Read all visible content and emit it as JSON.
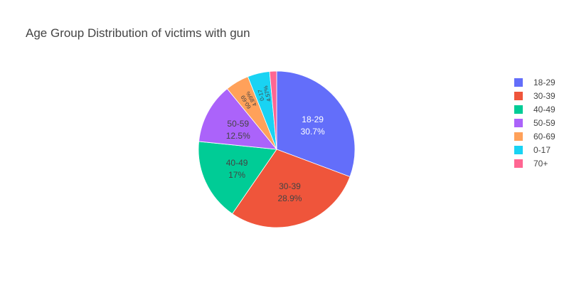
{
  "chart_data": {
    "type": "pie",
    "title": "Age Group Distribution of victims with gun",
    "categories": [
      "18-29",
      "30-39",
      "40-49",
      "50-59",
      "60-69",
      "0-17",
      "70+"
    ],
    "values": [
      30.7,
      28.9,
      17.0,
      12.5,
      4.89,
      4.57,
      1.44
    ],
    "value_labels": [
      "30.7%",
      "28.9%",
      "17%",
      "12.5%",
      "4.89%",
      "4.57%",
      ""
    ],
    "colors": [
      "#636efa",
      "#ef553b",
      "#00cc96",
      "#ab63fa",
      "#ffa15a",
      "#19d3f3",
      "#ff6692"
    ],
    "label_colors": [
      "#ffffff",
      "#444444",
      "#444444",
      "#444444",
      "#444444",
      "#444444",
      "#444444"
    ],
    "legend_position": "right",
    "start_angle": "12 o'clock",
    "direction": "clockwise"
  }
}
